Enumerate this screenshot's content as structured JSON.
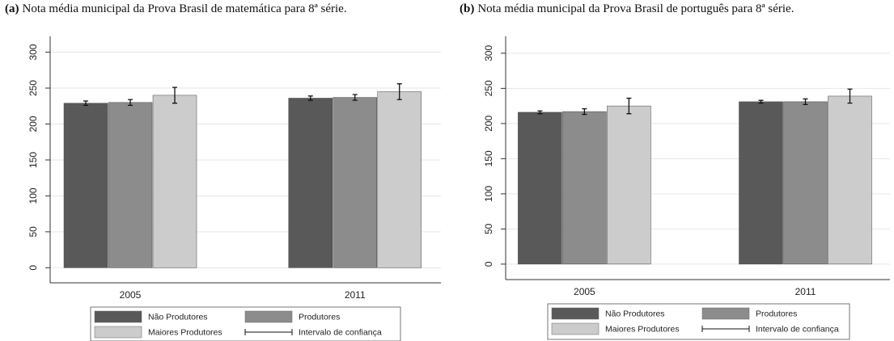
{
  "chart_data": [
    {
      "type": "bar",
      "panel": "(a)",
      "title": "Nota média municipal da Prova Brasil de matemática para 8ª série.",
      "categories": [
        "2005",
        "2011"
      ],
      "series": [
        {
          "name": "Não Produtores",
          "color": "#595959",
          "values": [
            229,
            236
          ],
          "errors": [
            3,
            3
          ]
        },
        {
          "name": "Produtores",
          "color": "#8c8c8c",
          "values": [
            230,
            237
          ],
          "errors": [
            4,
            4
          ]
        },
        {
          "name": "Maiores Produtores",
          "color": "#cccccc",
          "values": [
            240,
            245
          ],
          "errors": [
            11,
            11
          ]
        }
      ],
      "error_label": "Intervalo de confiança",
      "ylim": [
        -21,
        322
      ],
      "yticks": [
        0,
        50,
        100,
        150,
        200,
        250,
        300
      ],
      "grid": true
    },
    {
      "type": "bar",
      "panel": "(b)",
      "title": "Nota média municipal da Prova Brasil de português para 8ª série.",
      "categories": [
        "2005",
        "2011"
      ],
      "series": [
        {
          "name": "Não Produtores",
          "color": "#595959",
          "values": [
            216,
            231
          ],
          "errors": [
            2,
            2
          ]
        },
        {
          "name": "Produtores",
          "color": "#8c8c8c",
          "values": [
            217,
            231
          ],
          "errors": [
            4,
            4
          ]
        },
        {
          "name": "Maiores Produtores",
          "color": "#cccccc",
          "values": [
            225,
            239
          ],
          "errors": [
            11,
            10
          ]
        }
      ],
      "error_label": "Intervalo de confiança",
      "ylim": [
        -22,
        324
      ],
      "yticks": [
        0,
        50,
        100,
        150,
        200,
        250,
        300
      ],
      "grid": true
    }
  ]
}
